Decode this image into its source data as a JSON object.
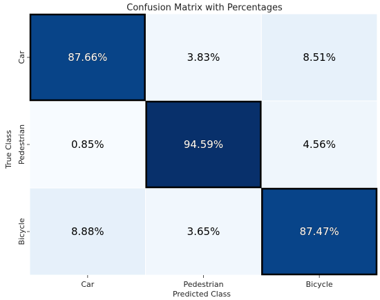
{
  "chart_data": {
    "type": "heatmap",
    "title": "Confusion Matrix with Percentages",
    "xlabel": "Predicted Class",
    "ylabel": "True Class",
    "x_categories": [
      "Car",
      "Pedestrian",
      "Bicycle"
    ],
    "y_categories": [
      "Car",
      "Pedestrian",
      "Bicycle"
    ],
    "values": [
      [
        87.66,
        3.83,
        8.51
      ],
      [
        0.85,
        94.59,
        4.56
      ],
      [
        8.88,
        3.65,
        87.47
      ]
    ],
    "cell_labels": [
      [
        "87.66%",
        "3.83%",
        "8.51%"
      ],
      [
        "0.85%",
        "94.59%",
        "4.56%"
      ],
      [
        "8.88%",
        "3.65%",
        "87.47%"
      ]
    ],
    "colormap": "Blues",
    "highlighted_diagonal": true,
    "grid_line_color": "#ffffff",
    "highlight_border_color": "#000000"
  }
}
